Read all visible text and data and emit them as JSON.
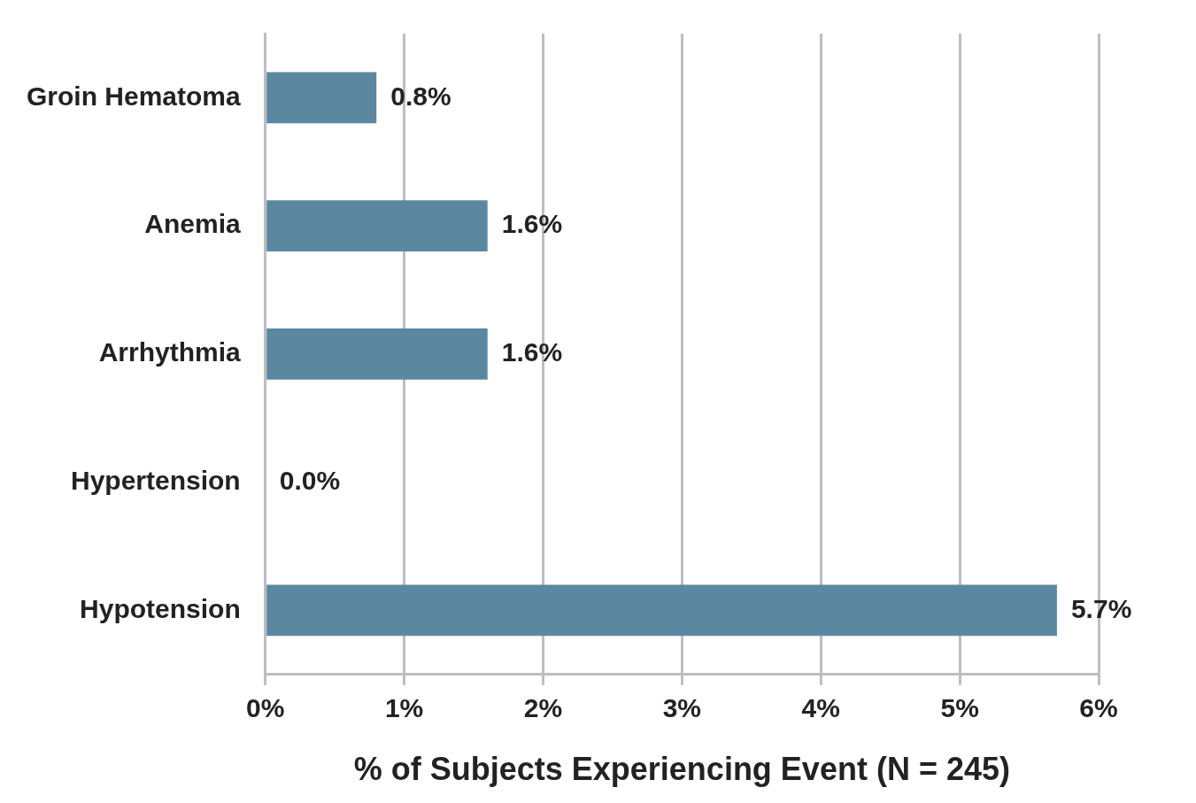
{
  "chart_data": {
    "type": "bar",
    "orientation": "horizontal",
    "xlabel": "% of Subjects Experiencing Event (N = 245)",
    "categories": [
      "Groin Hematoma",
      "Anemia",
      "Arrhythmia",
      "Hypertension",
      "Hypotension"
    ],
    "values": [
      0.8,
      1.6,
      1.6,
      0.0,
      5.7
    ],
    "value_labels": [
      "0.8%",
      "1.6%",
      "1.6%",
      "0.0%",
      "5.7%"
    ],
    "color": "#5b87a0",
    "xlim": [
      0,
      6
    ],
    "xticks": [
      {
        "value": 0,
        "label": "0%"
      },
      {
        "value": 1,
        "label": "1%"
      },
      {
        "value": 2,
        "label": "2%"
      },
      {
        "value": 3,
        "label": "3%"
      },
      {
        "value": 4,
        "label": "4%"
      },
      {
        "value": 5,
        "label": "5%"
      },
      {
        "value": 6,
        "label": "6%"
      }
    ],
    "grid": "x",
    "legend": false
  }
}
